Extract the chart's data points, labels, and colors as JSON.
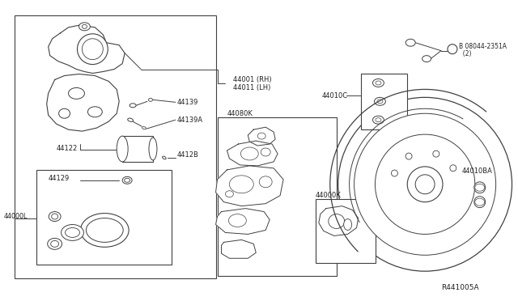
{
  "bg_color": "#ffffff",
  "line_color": "#404040",
  "text_color": "#222222",
  "labels": {
    "44001_RH": "44001 (RH)",
    "44011_LH": "44011 (LH)",
    "44139": "44139",
    "44139A": "44139A",
    "44122": "44122",
    "4412B": "4412B",
    "44129": "44129",
    "44000L": "44000L",
    "44080K": "44080K",
    "44000K": "44000K",
    "44010C": "44010C",
    "08044_2351A_line1": "B 08044-2351A",
    "08044_2351A_line2": "  (2)",
    "44010BA": "44010BA",
    "R441005A": "R441005A"
  }
}
